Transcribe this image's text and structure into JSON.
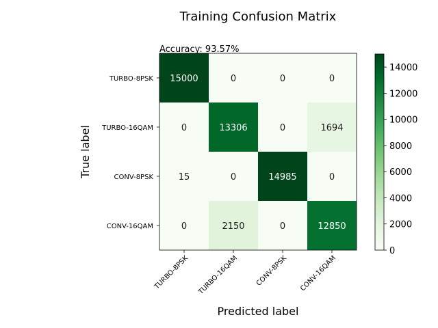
{
  "chart_data": {
    "type": "heatmap",
    "title": "Training Confusion Matrix",
    "subtitle": "Accuracy: 93.57%",
    "xlabel": "Predicted label",
    "ylabel": "True label",
    "x_categories": [
      "TURBO-8PSK",
      "TURBO-16QAM",
      "CONV-8PSK",
      "CONV-16QAM"
    ],
    "y_categories": [
      "TURBO-8PSK",
      "TURBO-16QAM",
      "CONV-8PSK",
      "CONV-16QAM"
    ],
    "values": [
      [
        15000,
        0,
        0,
        0
      ],
      [
        0,
        13306,
        0,
        1694
      ],
      [
        15,
        0,
        14985,
        0
      ],
      [
        0,
        2150,
        0,
        12850
      ]
    ],
    "colormap": "Greens",
    "colorbar": {
      "range": [
        0,
        15000
      ],
      "ticks": [
        0,
        2000,
        4000,
        6000,
        8000,
        10000,
        12000,
        14000
      ]
    },
    "grid": false
  }
}
